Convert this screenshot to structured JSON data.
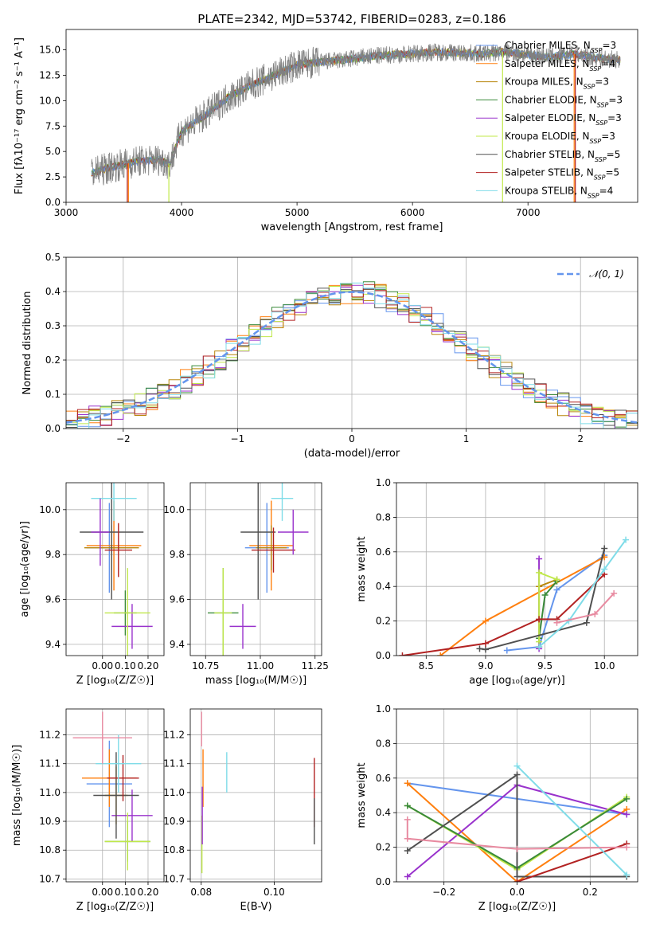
{
  "figure": {
    "title": "PLATE=2342, MJD=53742, FIBERID=0283, z=0.186"
  },
  "series": [
    {
      "label": "Chabrier MILES, N",
      "sub": "SSP",
      "tail": "=3",
      "color": "#6495ed"
    },
    {
      "label": "Salpeter MILES, N",
      "sub": "SSP",
      "tail": "=4",
      "color": "#ff7f0e"
    },
    {
      "label": "Kroupa MILES, N",
      "sub": "SSP",
      "tail": "=3",
      "color": "#b8860b"
    },
    {
      "label": "Chabrier ELODIE, N",
      "sub": "SSP",
      "tail": "=3",
      "color": "#3a8a3a"
    },
    {
      "label": "Salpeter ELODIE, N",
      "sub": "SSP",
      "tail": "=3",
      "color": "#9932cc"
    },
    {
      "label": "Kroupa ELODIE, N",
      "sub": "SSP",
      "tail": "=3",
      "color": "#c0e84a"
    },
    {
      "label": "Chabrier STELIB, N",
      "sub": "SSP",
      "tail": "=5",
      "color": "#505050"
    },
    {
      "label": "Salpeter STELIB, N",
      "sub": "SSP",
      "tail": "=5",
      "color": "#b22222"
    },
    {
      "label": "Kroupa STELIB, N",
      "sub": "SSP",
      "tail": "=4",
      "color": "#7fdce8"
    }
  ],
  "chart_data": [
    {
      "id": "spectrum",
      "type": "line",
      "xlabel": "wavelength [Angstrom, rest frame]",
      "ylabel": "Flux [fλ10⁻¹⁷ erg cm⁻² s⁻¹ A⁻¹]",
      "xlim": [
        3000,
        7950
      ],
      "ylim": [
        0,
        17
      ],
      "xticks": [
        3000,
        4000,
        5000,
        6000,
        7000
      ],
      "yticks": [
        0.0,
        2.5,
        5.0,
        7.5,
        10.0,
        12.5,
        15.0
      ],
      "observed_color": "#808080",
      "wavelength_range": [
        3220,
        7800
      ],
      "continuum": [
        [
          3220,
          2.9
        ],
        [
          3400,
          3.5
        ],
        [
          3600,
          4.0
        ],
        [
          3800,
          4.2
        ],
        [
          3900,
          3.8
        ],
        [
          4000,
          7.0
        ],
        [
          4200,
          8.5
        ],
        [
          4400,
          10.3
        ],
        [
          4600,
          11.5
        ],
        [
          4800,
          12.5
        ],
        [
          5000,
          13.5
        ],
        [
          5200,
          13.8
        ],
        [
          5400,
          14.0
        ],
        [
          5600,
          14.3
        ],
        [
          5800,
          14.5
        ],
        [
          6000,
          14.6
        ],
        [
          6200,
          14.8
        ],
        [
          6400,
          14.7
        ],
        [
          6600,
          14.6
        ],
        [
          6800,
          14.8
        ],
        [
          7000,
          14.5
        ],
        [
          7200,
          14.3
        ],
        [
          7400,
          14.6
        ],
        [
          7600,
          14.2
        ],
        [
          7800,
          14.0
        ]
      ],
      "model_cutoffs": [
        [
          3530,
          7410
        ],
        [
          3890,
          6780
        ],
        [
          3540,
          7400
        ]
      ]
    },
    {
      "id": "residuals",
      "type": "histogram",
      "xlabel": "(data-model)/error",
      "ylabel": "Normed distribution",
      "xlim": [
        -2.5,
        2.5
      ],
      "ylim": [
        0,
        0.5
      ],
      "xticks": [
        -2,
        -1,
        0,
        1,
        2
      ],
      "yticks": [
        0.0,
        0.1,
        0.2,
        0.3,
        0.4,
        0.5
      ],
      "bin_width": 0.1,
      "reference_label": "𝒩(0, 1)",
      "reference_color": "#6495ed"
    },
    {
      "id": "age_vs_Z",
      "type": "errorbar",
      "xlabel": "Z [log₁₀(Z/Z☉)]",
      "ylabel": "age  [log₁₀(age/yr)]",
      "xlim": [
        -0.16,
        0.27
      ],
      "ylim": [
        9.35,
        10.12
      ],
      "xticks": [
        0.0,
        0.1,
        0.2
      ],
      "yticks": [
        9.4,
        9.6,
        9.8,
        10.0
      ],
      "points": [
        {
          "s": 0,
          "x": 0.03,
          "xerr": 0.1,
          "y": 9.83,
          "yerr": 0.2
        },
        {
          "s": 1,
          "x": 0.05,
          "xerr": 0.12,
          "y": 9.84,
          "yerr": 0.2
        },
        {
          "s": 2,
          "x": 0.04,
          "xerr": 0.12,
          "y": 9.83,
          "yerr": 0.1
        },
        {
          "s": 3,
          "x": 0.1,
          "xerr": 0.05,
          "y": 9.54,
          "yerr": 0.1
        },
        {
          "s": 4,
          "x": 0.13,
          "xerr": 0.09,
          "y": 9.48,
          "yerr": 0.1
        },
        {
          "s": 5,
          "x": 0.11,
          "xerr": 0.1,
          "y": 9.54,
          "yerr": 0.2
        },
        {
          "s": 6,
          "x": 0.04,
          "xerr": 0.14,
          "y": 9.9,
          "yerr": 0.3
        },
        {
          "s": 7,
          "x": 0.07,
          "xerr": 0.06,
          "y": 9.82,
          "yerr": 0.12
        },
        {
          "s": 8,
          "x": 0.05,
          "xerr": 0.1,
          "y": 10.05,
          "yerr": 0.1
        },
        {
          "s": 4,
          "x": -0.01,
          "xerr": 0.04,
          "y": 9.9,
          "yerr": 0.15
        }
      ]
    },
    {
      "id": "age_vs_mass",
      "type": "errorbar",
      "xlabel": "mass [log₁₀(M/M☉)]",
      "ylabel": "",
      "xlim": [
        10.68,
        11.28
      ],
      "ylim": [
        9.35,
        10.12
      ],
      "xticks": [
        10.75,
        11.0,
        11.25
      ],
      "yticks": [
        9.4,
        9.6,
        9.8,
        10.0
      ],
      "points": [
        {
          "s": 0,
          "x": 11.03,
          "xerr": 0.1,
          "y": 9.83,
          "yerr": 0.2
        },
        {
          "s": 1,
          "x": 11.05,
          "xerr": 0.1,
          "y": 9.84,
          "yerr": 0.2
        },
        {
          "s": 2,
          "x": 11.05,
          "xerr": 0.07,
          "y": 9.83,
          "yerr": 0.1
        },
        {
          "s": 3,
          "x": 10.83,
          "xerr": 0.07,
          "y": 9.54,
          "yerr": 0.2
        },
        {
          "s": 4,
          "x": 10.92,
          "xerr": 0.06,
          "y": 9.48,
          "yerr": 0.1
        },
        {
          "s": 5,
          "x": 10.83,
          "xerr": 0.04,
          "y": 9.54,
          "yerr": 0.2
        },
        {
          "s": 6,
          "x": 10.99,
          "xerr": 0.08,
          "y": 9.9,
          "yerr": 0.3
        },
        {
          "s": 7,
          "x": 11.06,
          "xerr": 0.1,
          "y": 9.82,
          "yerr": 0.1
        },
        {
          "s": 8,
          "x": 11.1,
          "xerr": 0.05,
          "y": 10.05,
          "yerr": 0.1
        },
        {
          "s": 4,
          "x": 11.15,
          "xerr": 0.07,
          "y": 9.9,
          "yerr": 0.1
        }
      ]
    },
    {
      "id": "weights_vs_age",
      "type": "line",
      "xlabel": "age  [log₁₀(age/yr)]",
      "ylabel": "mass weight",
      "xlim": [
        8.25,
        10.28
      ],
      "ylim": [
        0,
        1.0
      ],
      "xticks": [
        8.5,
        9.0,
        9.5,
        10.0
      ],
      "yticks": [
        0.0,
        0.2,
        0.4,
        0.6,
        0.8,
        1.0
      ],
      "lines": [
        {
          "s": 0,
          "pts": [
            [
              9.18,
              0.03
            ],
            [
              9.45,
              0.05
            ],
            [
              9.6,
              0.38
            ],
            [
              10.0,
              0.58
            ]
          ]
        },
        {
          "s": 1,
          "pts": [
            [
              8.62,
              0.0
            ],
            [
              9.0,
              0.2
            ],
            [
              10.0,
              0.57
            ]
          ]
        },
        {
          "s": 2,
          "pts": [
            [
              9.45,
              0.05
            ],
            [
              9.45,
              0.4
            ],
            [
              9.6,
              0.44
            ]
          ]
        },
        {
          "s": 3,
          "pts": [
            [
              9.45,
              0.1
            ],
            [
              9.5,
              0.35
            ],
            [
              9.6,
              0.43
            ]
          ]
        },
        {
          "s": 4,
          "pts": [
            [
              9.45,
              0.04
            ],
            [
              9.45,
              0.56
            ]
          ]
        },
        {
          "s": 5,
          "pts": [
            [
              9.45,
              0.08
            ],
            [
              9.45,
              0.48
            ],
            [
              9.6,
              0.44
            ]
          ]
        },
        {
          "s": 6,
          "pts": [
            [
              8.95,
              0.04
            ],
            [
              9.0,
              0.035
            ],
            [
              9.85,
              0.19
            ],
            [
              10.0,
              0.62
            ]
          ]
        },
        {
          "s": 7,
          "pts": [
            [
              8.3,
              0.0
            ],
            [
              9.0,
              0.07
            ],
            [
              9.45,
              0.21
            ],
            [
              9.6,
              0.21
            ],
            [
              10.0,
              0.47
            ]
          ]
        },
        {
          "s": 8,
          "pts": [
            [
              9.45,
              0.05
            ],
            [
              9.7,
              0.2
            ],
            [
              10.0,
              0.5
            ],
            [
              10.18,
              0.67
            ]
          ]
        },
        {
          "s": 9,
          "pts": [
            [
              9.6,
              0.19
            ],
            [
              9.92,
              0.24
            ],
            [
              10.08,
              0.36
            ]
          ]
        }
      ]
    },
    {
      "id": "mass_vs_Z",
      "type": "errorbar",
      "xlabel": "Z [log₁₀(Z/Z☉)]",
      "ylabel": "mass [log₁₀(M/M☉)]",
      "xlim": [
        -0.16,
        0.27
      ],
      "ylim": [
        10.69,
        11.29
      ],
      "xticks": [
        0.0,
        0.1,
        0.2
      ],
      "yticks": [
        10.7,
        10.8,
        10.9,
        11.0,
        11.1,
        11.2
      ],
      "points": [
        {
          "s": 0,
          "x": 0.03,
          "xerr": 0.1,
          "y": 11.03,
          "yerr": 0.15
        },
        {
          "s": 1,
          "x": 0.03,
          "xerr": 0.12,
          "y": 11.05,
          "yerr": 0.1
        },
        {
          "s": 2,
          "x": 0.06,
          "xerr": 0.05,
          "y": 10.99,
          "yerr": 0.1
        },
        {
          "s": 3,
          "x": 0.11,
          "xerr": 0.1,
          "y": 10.83,
          "yerr": 0.07
        },
        {
          "s": 4,
          "x": 0.13,
          "xerr": 0.09,
          "y": 10.92,
          "yerr": 0.09
        },
        {
          "s": 5,
          "x": 0.11,
          "xerr": 0.1,
          "y": 10.83,
          "yerr": 0.1
        },
        {
          "s": 6,
          "x": 0.06,
          "xerr": 0.1,
          "y": 10.99,
          "yerr": 0.15
        },
        {
          "s": 7,
          "x": 0.09,
          "xerr": 0.07,
          "y": 11.05,
          "yerr": 0.08
        },
        {
          "s": 8,
          "x": 0.07,
          "xerr": 0.1,
          "y": 11.1,
          "yerr": 0.1
        },
        {
          "s": 9,
          "x": 0.0,
          "xerr": 0.13,
          "y": 11.19,
          "yerr": 0.09
        }
      ]
    },
    {
      "id": "mass_vs_EBV",
      "type": "errorbar",
      "xlabel": "E(B-V)",
      "ylabel": "",
      "xlim": [
        0.077,
        0.113
      ],
      "ylim": [
        10.69,
        11.29
      ],
      "xticks": [
        0.08,
        0.1
      ],
      "yticks": [
        10.7,
        10.8,
        10.9,
        11.0,
        11.1,
        11.2
      ],
      "points": [
        {
          "s": 1,
          "x": 0.0805,
          "xerr": 0,
          "y": 11.05,
          "yerr": 0.1
        },
        {
          "s": 5,
          "x": 0.0802,
          "xerr": 0,
          "y": 10.82,
          "yerr": 0.1
        },
        {
          "s": 4,
          "x": 0.0803,
          "xerr": 0,
          "y": 10.92,
          "yerr": 0.1
        },
        {
          "s": 9,
          "x": 0.0801,
          "xerr": 0,
          "y": 11.22,
          "yerr": 0.06
        },
        {
          "s": 8,
          "x": 0.087,
          "xerr": 0,
          "y": 11.07,
          "yerr": 0.07
        },
        {
          "s": 7,
          "x": 0.111,
          "xerr": 0,
          "y": 11.0,
          "yerr": 0.12
        },
        {
          "s": 6,
          "x": 0.111,
          "xerr": 0,
          "y": 10.9,
          "yerr": 0.08
        }
      ]
    },
    {
      "id": "weights_vs_Z",
      "type": "line",
      "xlabel": "Z [log₁₀(Z/Z☉)]",
      "ylabel": "mass weight",
      "xlim": [
        -0.33,
        0.33
      ],
      "ylim": [
        0,
        1.0
      ],
      "xticks": [
        -0.2,
        0.0,
        0.2
      ],
      "yticks": [
        0.0,
        0.2,
        0.4,
        0.6,
        0.8,
        1.0
      ],
      "lines": [
        {
          "s": 0,
          "pts": [
            [
              -0.3,
              0.57
            ],
            [
              0.3,
              0.39
            ]
          ]
        },
        {
          "s": 1,
          "pts": [
            [
              -0.3,
              0.57
            ],
            [
              0.0,
              0.0
            ],
            [
              0.3,
              0.42
            ]
          ]
        },
        {
          "s": 4,
          "pts": [
            [
              -0.3,
              0.03
            ],
            [
              0.0,
              0.56
            ],
            [
              0.3,
              0.39
            ]
          ]
        },
        {
          "s": 5,
          "pts": [
            [
              -0.3,
              0.44
            ],
            [
              0.0,
              0.07
            ],
            [
              0.3,
              0.49
            ]
          ]
        },
        {
          "s": 3,
          "pts": [
            [
              -0.3,
              0.44
            ],
            [
              0.0,
              0.08
            ],
            [
              0.3,
              0.48
            ]
          ]
        },
        {
          "s": 6,
          "pts": [
            [
              -0.3,
              0.18
            ],
            [
              0.0,
              0.62
            ],
            [
              0.0,
              0.03
            ],
            [
              0.3,
              0.03
            ]
          ]
        },
        {
          "s": 7,
          "pts": [
            [
              0.0,
              0.0
            ],
            [
              0.3,
              0.22
            ]
          ]
        },
        {
          "s": 8,
          "pts": [
            [
              0.0,
              0.67
            ],
            [
              0.3,
              0.04
            ]
          ]
        },
        {
          "s": 9,
          "pts": [
            [
              -0.3,
              0.36
            ],
            [
              -0.3,
              0.25
            ],
            [
              0.0,
              0.19
            ],
            [
              0.3,
              0.2
            ]
          ]
        }
      ]
    }
  ]
}
